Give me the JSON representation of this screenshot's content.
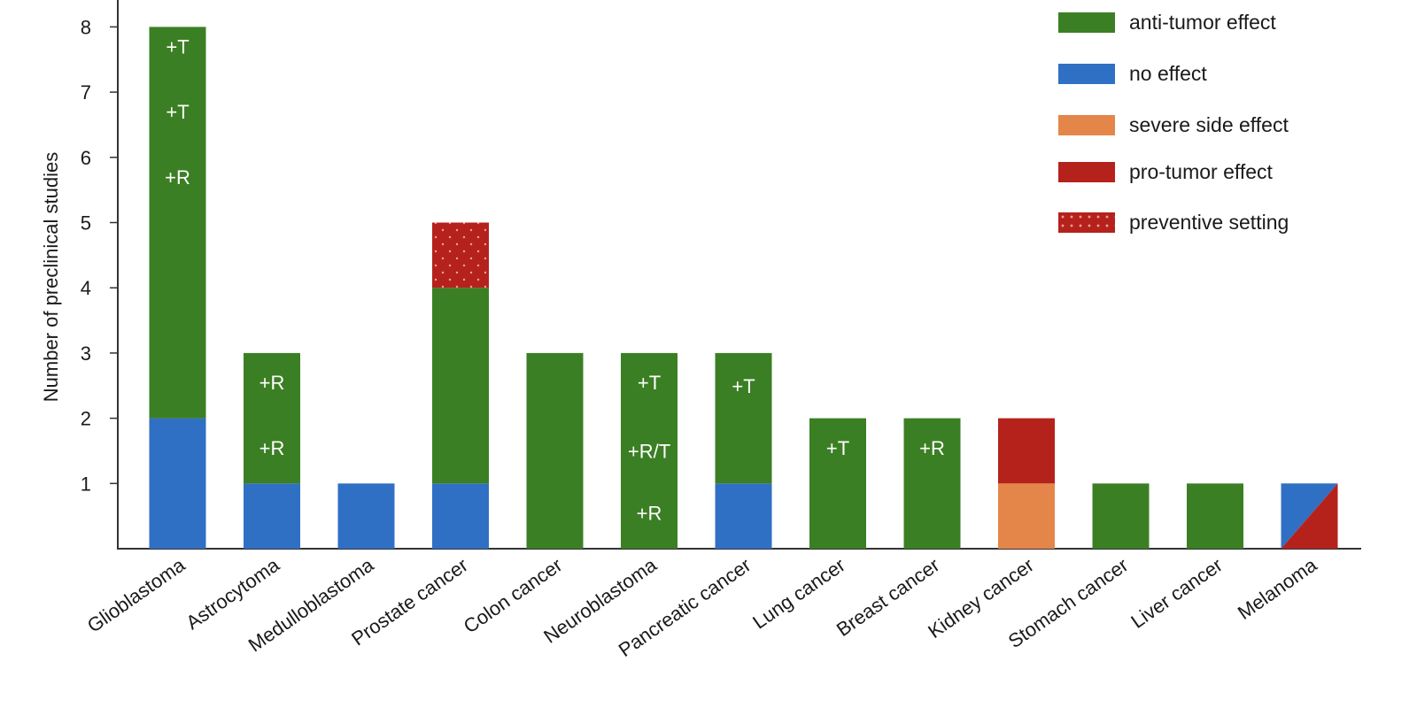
{
  "chart_data": {
    "type": "bar",
    "stacked": true,
    "title": "",
    "xlabel": "",
    "ylabel": "Number of preclinical studies",
    "ylim": [
      0,
      8.3
    ],
    "yticks": [
      1,
      2,
      3,
      4,
      5,
      6,
      7,
      8
    ],
    "grid": false,
    "legend_position": "top-right",
    "categories": [
      "Glioblastoma",
      "Astrocytoma",
      "Medulloblastoma",
      "Prostate cancer",
      "Colon cancer",
      "Neuroblastoma",
      "Pancreatic cancer",
      "Lung cancer",
      "Breast cancer",
      "Kidney cancer",
      "Stomach cancer",
      "Liver cancer",
      "Melanoma"
    ],
    "series": [
      {
        "name": "no effect",
        "color": "#3070c4",
        "values": [
          2,
          1,
          1,
          1,
          0,
          0,
          1,
          0,
          0,
          0,
          0,
          0,
          0
        ]
      },
      {
        "name": "severe side effect",
        "color": "#e4864a",
        "values": [
          0,
          0,
          0,
          0,
          0,
          0,
          0,
          0,
          0,
          1,
          0,
          0,
          0
        ]
      },
      {
        "name": "anti-tumor effect",
        "color": "#3b7f24",
        "values": [
          6,
          2,
          0,
          3,
          3,
          3,
          2,
          2,
          2,
          0,
          1,
          1,
          0
        ]
      },
      {
        "name": "pro-tumor effect",
        "color": "#b5221c",
        "values": [
          0,
          0,
          0,
          0,
          0,
          0,
          0,
          0,
          0,
          1,
          0,
          0,
          0
        ]
      },
      {
        "name": "preventive setting",
        "color": "#b5221c",
        "pattern": "dots",
        "values": [
          0,
          0,
          0,
          1,
          0,
          0,
          0,
          0,
          0,
          0,
          0,
          0,
          0
        ]
      }
    ],
    "split_bars": [
      {
        "category": "Melanoma",
        "value": 1,
        "upper_left": "no effect",
        "lower_right": "pro-tumor effect",
        "note": "diagonally split bar"
      }
    ],
    "totals": [
      8,
      3,
      1,
      5,
      3,
      3,
      3,
      2,
      2,
      2,
      1,
      1,
      1
    ],
    "annotations": [
      {
        "category": "Glioblastoma",
        "labels": [
          "+T",
          "+T",
          "+R"
        ],
        "y": [
          7.7,
          6.7,
          5.7
        ]
      },
      {
        "category": "Astrocytoma",
        "labels": [
          "+R",
          "+R"
        ],
        "y": [
          2.55,
          1.55
        ]
      },
      {
        "category": "Neuroblastoma",
        "labels": [
          "+T",
          "+R/T",
          "+R"
        ],
        "y": [
          2.55,
          1.5,
          0.55
        ]
      },
      {
        "category": "Pancreatic cancer",
        "labels": [
          "+T"
        ],
        "y": [
          2.5
        ]
      },
      {
        "category": "Lung cancer",
        "labels": [
          "+T"
        ],
        "y": [
          1.55
        ]
      },
      {
        "category": "Breast cancer",
        "labels": [
          "+R"
        ],
        "y": [
          1.55
        ]
      }
    ]
  },
  "legend": {
    "items": [
      {
        "label": "anti-tumor effect",
        "color": "#3b7f24",
        "pattern": "solid"
      },
      {
        "label": "no effect",
        "color": "#3070c4",
        "pattern": "solid"
      },
      {
        "label": "severe side effect",
        "color": "#e4864a",
        "pattern": "solid"
      },
      {
        "label": "pro-tumor effect",
        "color": "#b5221c",
        "pattern": "solid"
      },
      {
        "label": "preventive setting",
        "color": "#b5221c",
        "pattern": "dots"
      }
    ]
  },
  "axis": {
    "ylabel": "Number of preclinical studies"
  }
}
